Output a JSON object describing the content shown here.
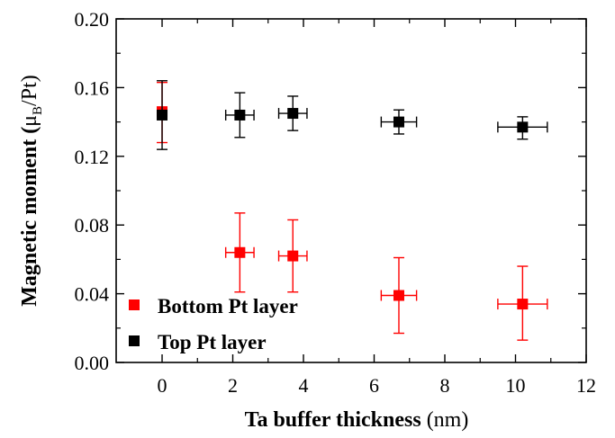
{
  "chart_data": {
    "type": "scatter",
    "xlabel": {
      "main": "Ta buffer thickness",
      "unit": "(nm)"
    },
    "ylabel": {
      "prefix": "Magnetic moment (",
      "mu": "μ",
      "sub": "B",
      "suffix": "/Pt)"
    },
    "xlim": [
      -1.3,
      12
    ],
    "ylim": [
      0,
      0.2
    ],
    "x_ticks": [
      0,
      2,
      4,
      6,
      8,
      10,
      12
    ],
    "x_tick_labels": [
      "0",
      "2",
      "4",
      "6",
      "8",
      "10",
      "12"
    ],
    "y_ticks": [
      0,
      0.04,
      0.08,
      0.12,
      0.16,
      0.2
    ],
    "y_tick_labels": [
      "0.00",
      "0.04",
      "0.08",
      "0.12",
      "0.16",
      "0.20"
    ],
    "legend_position": "bottom-left",
    "series": [
      {
        "name": "Bottom Pt layer",
        "color": "#ff0000",
        "points": [
          {
            "x": 0,
            "y": 0.146,
            "xerr": 0,
            "y_lo": 0.128,
            "y_hi": 0.163
          },
          {
            "x": 2.2,
            "y": 0.064,
            "xerr": 0.4,
            "y_lo": 0.041,
            "y_hi": 0.087
          },
          {
            "x": 3.7,
            "y": 0.062,
            "xerr": 0.4,
            "y_lo": 0.041,
            "y_hi": 0.083
          },
          {
            "x": 6.7,
            "y": 0.039,
            "xerr": 0.5,
            "y_lo": 0.017,
            "y_hi": 0.061
          },
          {
            "x": 10.2,
            "y": 0.034,
            "xerr": 0.7,
            "y_lo": 0.013,
            "y_hi": 0.056
          }
        ]
      },
      {
        "name": "Top Pt layer",
        "color": "#000000",
        "points": [
          {
            "x": 0,
            "y": 0.144,
            "xerr": 0,
            "y_lo": 0.124,
            "y_hi": 0.164
          },
          {
            "x": 2.2,
            "y": 0.144,
            "xerr": 0.4,
            "y_lo": 0.131,
            "y_hi": 0.157
          },
          {
            "x": 3.7,
            "y": 0.145,
            "xerr": 0.4,
            "y_lo": 0.135,
            "y_hi": 0.155
          },
          {
            "x": 6.7,
            "y": 0.14,
            "xerr": 0.5,
            "y_lo": 0.133,
            "y_hi": 0.147
          },
          {
            "x": 10.2,
            "y": 0.137,
            "xerr": 0.7,
            "y_lo": 0.13,
            "y_hi": 0.143
          }
        ]
      }
    ]
  }
}
